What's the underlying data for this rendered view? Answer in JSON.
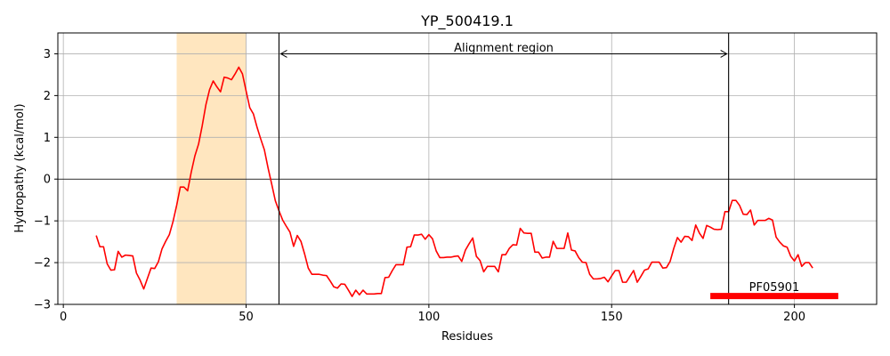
{
  "chart_data": {
    "type": "line",
    "title": "YP_500419.1",
    "xlabel": "Residues",
    "ylabel": "Hydropathy (kcal/mol)",
    "xlim": [
      -1.5,
      222.5
    ],
    "ylim": [
      -3,
      3.5
    ],
    "xticks": [
      0,
      50,
      100,
      150,
      200
    ],
    "yticks": [
      -3,
      -2,
      -1,
      0,
      1,
      2,
      3
    ],
    "grid": true,
    "colors": {
      "line": "#ff0000",
      "highlight": "#ffe6bf",
      "domain_bar": "#ff0000",
      "grid": "#b0b0b0",
      "axis": "#000000"
    },
    "highlight_region": [
      31,
      50
    ],
    "alignment_region": {
      "label": "Alignment region",
      "start": 59,
      "end": 182
    },
    "domain": {
      "label": "PF05901",
      "start": 177,
      "end": 212,
      "y": -2.8
    },
    "series": [
      {
        "x": [
          9,
          10,
          11,
          12,
          13,
          14,
          15,
          16,
          17,
          18,
          19,
          20,
          21,
          22,
          23,
          24,
          25,
          26,
          27,
          28,
          29,
          30,
          31,
          32,
          33,
          34,
          35,
          36,
          37,
          38,
          39,
          40,
          41,
          42,
          43,
          44,
          45,
          46,
          47,
          48,
          49,
          50,
          51,
          52,
          53,
          54,
          55,
          56,
          57,
          58,
          59,
          60,
          61,
          62,
          63,
          64,
          65,
          66,
          67,
          68,
          69,
          70,
          71,
          72,
          73,
          74,
          75,
          76,
          77,
          78,
          79,
          80,
          81,
          82,
          83,
          84,
          85,
          86,
          87,
          88,
          89,
          90,
          91,
          92,
          93,
          94,
          95,
          96,
          97,
          98,
          99,
          100,
          101,
          102,
          103,
          104,
          105,
          106,
          107,
          108,
          109,
          110,
          111,
          112,
          113,
          114,
          115,
          116,
          117,
          118,
          119,
          120,
          121,
          122,
          123,
          124,
          125,
          126,
          127,
          128,
          129,
          130,
          131,
          132,
          133,
          134,
          135,
          136,
          137,
          138,
          139,
          140,
          141,
          142,
          143,
          144,
          145,
          146,
          147,
          148,
          149,
          150,
          151,
          152,
          153,
          154,
          155,
          156,
          157,
          158,
          159,
          160,
          161,
          162,
          163,
          164,
          165,
          166,
          167,
          168,
          169,
          170,
          171,
          172,
          173,
          174,
          175,
          176,
          177,
          178,
          179,
          180,
          181,
          182,
          183,
          184,
          185,
          186,
          187,
          188,
          189,
          190,
          191,
          192,
          193,
          194,
          195,
          196,
          197,
          198,
          199,
          200,
          201,
          202,
          203,
          204,
          205
        ],
        "y": [
          -1.35,
          -1.62,
          -1.62,
          -2.03,
          -2.18,
          -2.17,
          -1.73,
          -1.87,
          -1.82,
          -1.83,
          -1.84,
          -2.25,
          -2.42,
          -2.63,
          -2.38,
          -2.13,
          -2.14,
          -1.98,
          -1.67,
          -1.49,
          -1.33,
          -1.02,
          -0.63,
          -0.19,
          -0.19,
          -0.28,
          0.17,
          0.56,
          0.84,
          1.28,
          1.78,
          2.14,
          2.35,
          2.21,
          2.09,
          2.44,
          2.42,
          2.38,
          2.52,
          2.68,
          2.52,
          2.11,
          1.71,
          1.56,
          1.24,
          0.96,
          0.7,
          0.27,
          -0.12,
          -0.52,
          -0.76,
          -0.98,
          -1.13,
          -1.27,
          -1.61,
          -1.35,
          -1.49,
          -1.79,
          -2.13,
          -2.28,
          -2.28,
          -2.28,
          -2.3,
          -2.31,
          -2.44,
          -2.58,
          -2.61,
          -2.51,
          -2.52,
          -2.66,
          -2.81,
          -2.66,
          -2.77,
          -2.66,
          -2.75,
          -2.75,
          -2.75,
          -2.74,
          -2.74,
          -2.36,
          -2.35,
          -2.19,
          -2.05,
          -2.05,
          -2.05,
          -1.63,
          -1.62,
          -1.34,
          -1.34,
          -1.32,
          -1.44,
          -1.33,
          -1.43,
          -1.72,
          -1.88,
          -1.88,
          -1.87,
          -1.87,
          -1.85,
          -1.84,
          -1.97,
          -1.7,
          -1.55,
          -1.41,
          -1.85,
          -1.95,
          -2.22,
          -2.09,
          -2.09,
          -2.09,
          -2.22,
          -1.81,
          -1.81,
          -1.66,
          -1.57,
          -1.58,
          -1.18,
          -1.29,
          -1.3,
          -1.3,
          -1.75,
          -1.75,
          -1.89,
          -1.87,
          -1.87,
          -1.49,
          -1.66,
          -1.66,
          -1.66,
          -1.29,
          -1.7,
          -1.72,
          -1.88,
          -1.99,
          -2.0,
          -2.28,
          -2.39,
          -2.39,
          -2.38,
          -2.35,
          -2.46,
          -2.32,
          -2.19,
          -2.19,
          -2.47,
          -2.47,
          -2.33,
          -2.19,
          -2.47,
          -2.33,
          -2.18,
          -2.15,
          -1.99,
          -1.99,
          -1.99,
          -2.13,
          -2.12,
          -1.97,
          -1.66,
          -1.4,
          -1.51,
          -1.37,
          -1.38,
          -1.47,
          -1.1,
          -1.29,
          -1.42,
          -1.11,
          -1.15,
          -1.2,
          -1.21,
          -1.2,
          -0.78,
          -0.78,
          -0.51,
          -0.51,
          -0.63,
          -0.84,
          -0.85,
          -0.74,
          -1.1,
          -0.99,
          -0.99,
          -0.99,
          -0.94,
          -0.98,
          -1.39,
          -1.51,
          -1.6,
          -1.63,
          -1.85,
          -1.96,
          -1.81,
          -2.09,
          -2.0,
          -2.0,
          -2.13
        ]
      }
    ]
  }
}
